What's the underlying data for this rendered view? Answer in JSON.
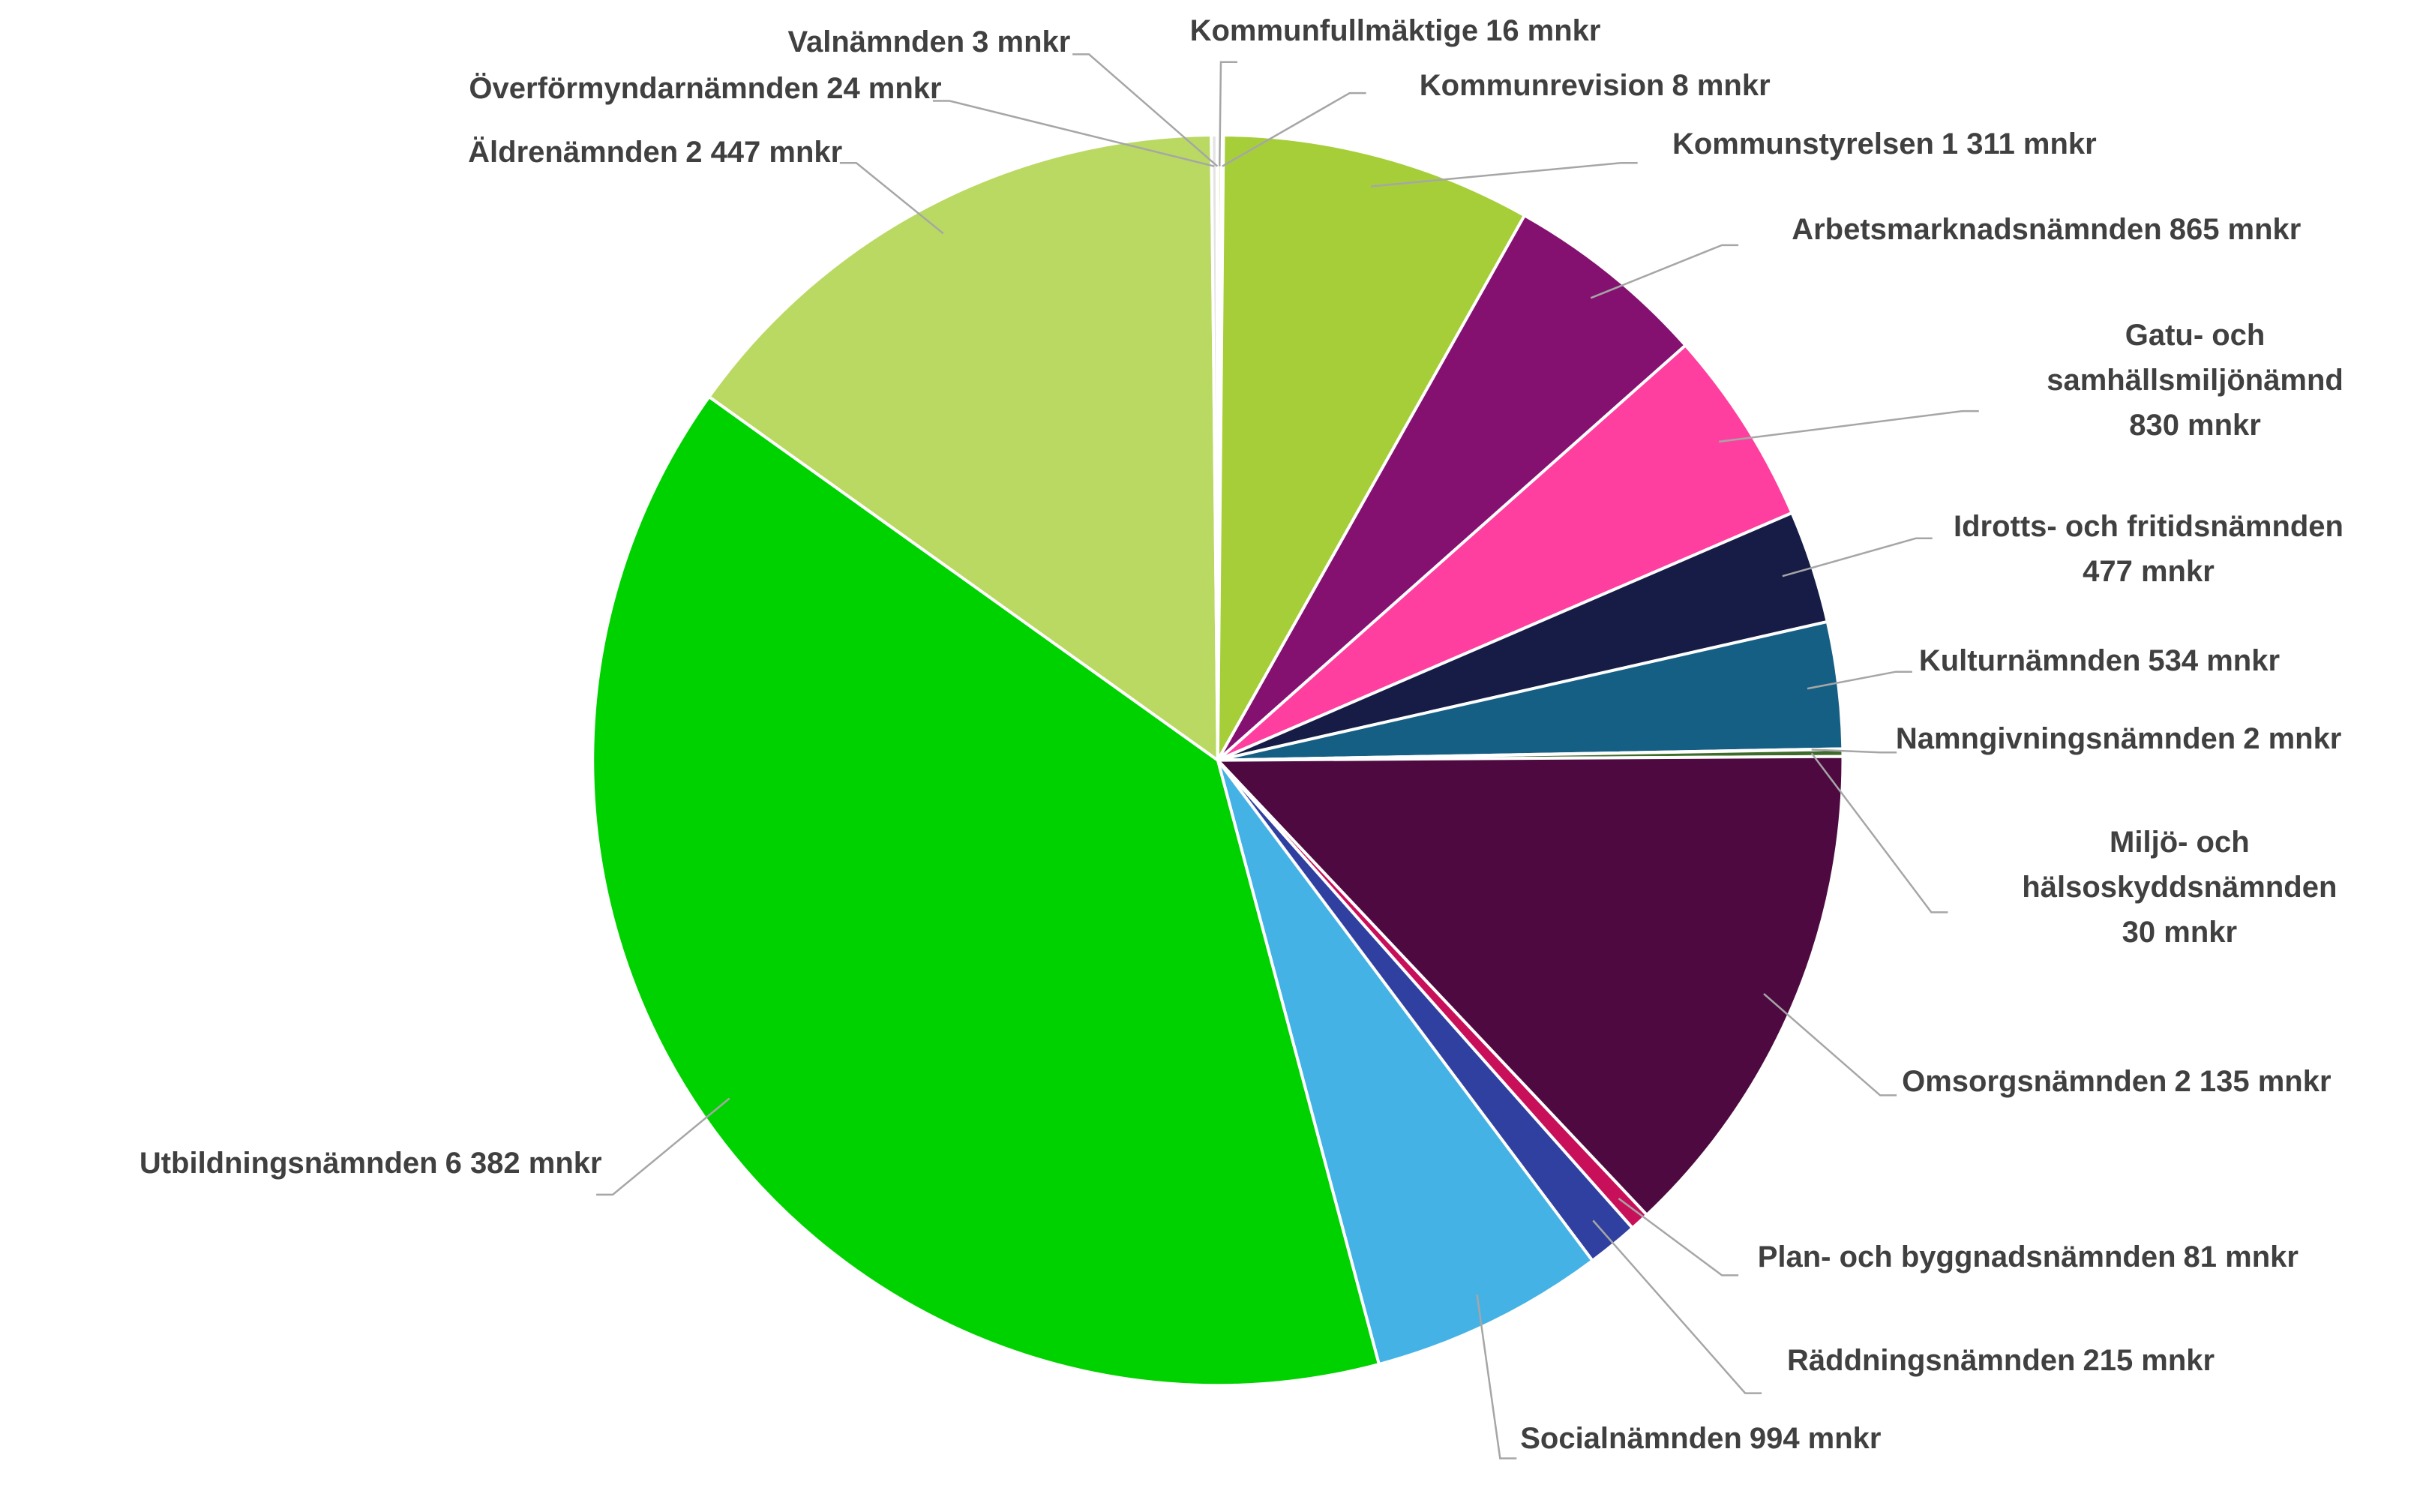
{
  "chart_data": {
    "type": "pie",
    "categories": [
      "Kommunfullmäktige",
      "Kommunrevision",
      "Kommunstyrelsen",
      "Arbetsmarknadsnämnden",
      "Gatu- och samhällsmiljönämnd",
      "Idrotts- och fritidsnämnden",
      "Kulturnämnden",
      "Namngivningsnämnden",
      "Miljö- och hälsoskyddsnämnden",
      "Omsorgsnämnden",
      "Plan- och byggnadsnämnden",
      "Räddningsnämnden",
      "Socialnämnden",
      "Utbildningsnämnden",
      "Äldrenämnden",
      "Överförmyndarnämnden",
      "Valnämnden"
    ],
    "values": [
      16,
      8,
      1311,
      865,
      830,
      477,
      534,
      2,
      30,
      2135,
      81,
      215,
      994,
      6382,
      2447,
      24,
      3
    ],
    "value_labels": [
      "16 mnkr",
      "8 mnkr",
      "1 311 mnkr",
      "865 mnkr",
      "830 mnkr",
      "477 mnkr",
      "534 mnkr",
      "2 mnkr",
      "30 mnkr",
      "2 135 mnkr",
      "81 mnkr",
      "215 mnkr",
      "994 mnkr",
      "6 382 mnkr",
      "2 447 mnkr",
      "24 mnkr",
      "3 mnkr"
    ],
    "colors": [
      "#c9e29a",
      "#8cbf2f",
      "#a6ce39",
      "#841170",
      "#ff3fa0",
      "#161c45",
      "#165f84",
      "#8fb63a",
      "#3e6b2a",
      "#4e0a40",
      "#c8105a",
      "#3040a0",
      "#45b2e5",
      "#00d200",
      "#b9d963",
      "#e4e4e4",
      "#d0d0d0"
    ]
  }
}
